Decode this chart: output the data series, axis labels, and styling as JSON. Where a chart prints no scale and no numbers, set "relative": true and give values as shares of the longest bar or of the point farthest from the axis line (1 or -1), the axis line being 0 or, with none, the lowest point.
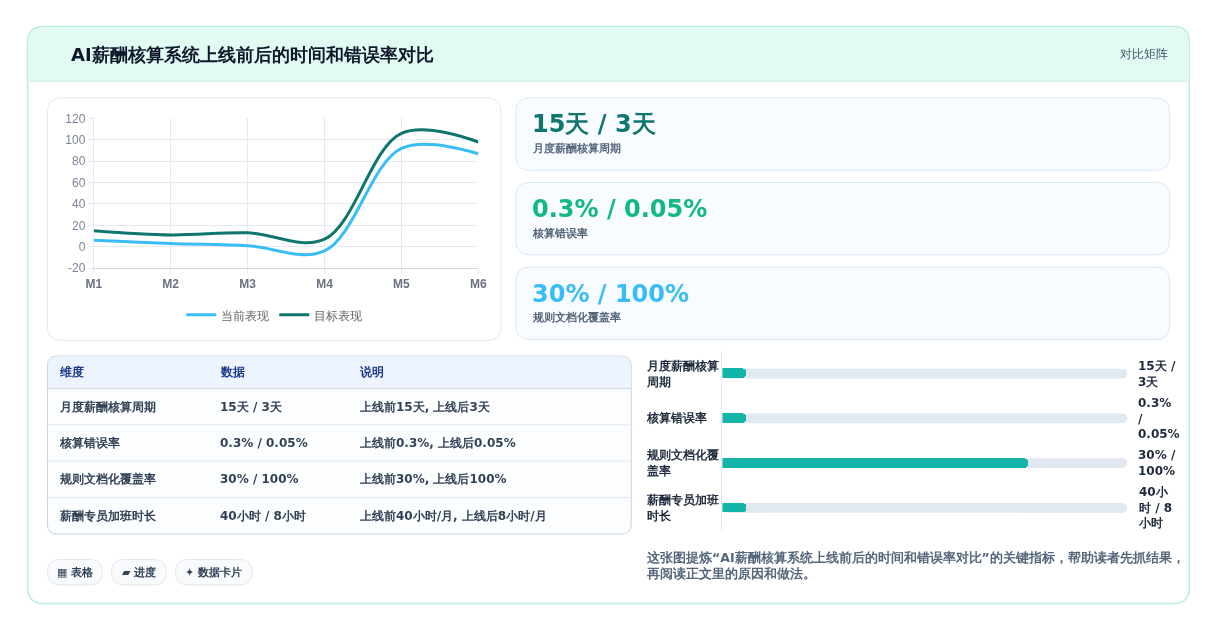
{
  "chart_data": [
    {
      "type": "other",
      "title": "AI薪酬核算系统上线前后的时间和错误率对比",
      "annotations": [
        "对比矩阵"
      ]
    },
    {
      "type": "line",
      "categories": [
        "M1",
        "M2",
        "M3",
        "M4",
        "M5",
        "M6"
      ],
      "series": [
        {
          "name": "当前表现",
          "color": "#38bdf8",
          "values": [
            6,
            3,
            1,
            -4,
            92,
            87
          ]
        },
        {
          "name": "目标表现",
          "color": "#0f766e",
          "values": [
            15,
            11,
            13,
            7,
            106,
            98
          ]
        }
      ],
      "ylim": [
        -20,
        120
      ],
      "yticks": [
        -20,
        0,
        20,
        40,
        60,
        80,
        100,
        120
      ],
      "grid": true,
      "legend": "bottom"
    },
    {
      "type": "other",
      "annotations": [
        "15天 / 3天",
        "月度薪酬核算周期",
        "0.3% / 0.05%",
        "核算错误率",
        "30% / 100%",
        "规则文档化覆盖率"
      ],
      "colors": [
        "#0f766e",
        "#10b981",
        "#38bdf8"
      ]
    },
    {
      "type": "other",
      "categories": [
        "维度",
        "数据",
        "说明"
      ],
      "annotations": [
        "月度薪酬核算周期",
        "15天 / 3天",
        "上线前15天, 上线后3天",
        "核算错误率",
        "0.3% / 0.05%",
        "上线前0.3%, 上线后0.05%",
        "规则文档化覆盖率",
        "30% / 100%",
        "上线前30%, 上线后100%",
        "薪酬专员加班时长",
        "40小时 / 8小时",
        "上线前40小时/月, 上线后8小时/月"
      ]
    },
    {
      "type": "bar",
      "orientation": "horizontal",
      "relative": true,
      "categories": [
        "月度薪酬核算周期",
        "核算错误率",
        "规则文档化覆盖率",
        "薪酬专员加班时长"
      ],
      "values": [
        0.08,
        0.08,
        1,
        0.08
      ],
      "color": "#13b5a8",
      "annotations": [
        "15天 / 3天",
        "0.3% / 0.05%",
        "30% / 100%",
        "40小时 / 8小时"
      ]
    },
    {
      "type": "other",
      "annotations": [
        "▦ 表格",
        "▰ 进度",
        "✦ 数据卡片"
      ]
    },
    {
      "type": "other",
      "annotations": [
        "这张图提炼“AI薪酬核算系统上线前后的时间和错误率对比”的关键指标，帮助读者先抓结果，再阅读正文里的原因和做法。"
      ]
    }
  ]
}
